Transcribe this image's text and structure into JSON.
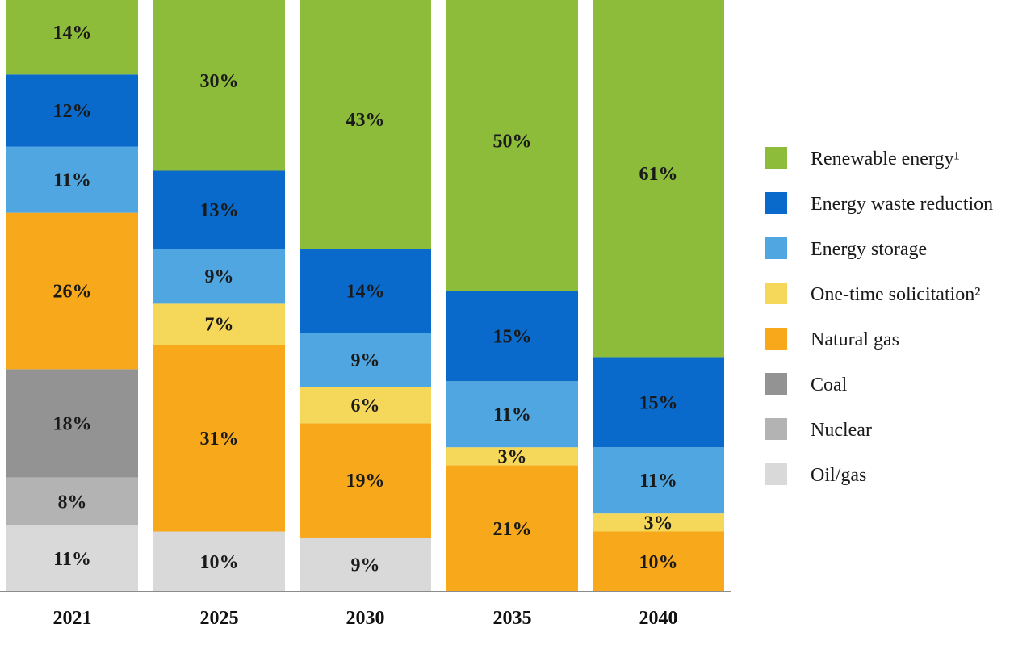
{
  "chart_data": {
    "type": "bar",
    "stacked": true,
    "percent_stacked": true,
    "title": "",
    "xlabel": "",
    "ylabel": "",
    "categories": [
      "2021",
      "2025",
      "2030",
      "2035",
      "2040"
    ],
    "series": [
      {
        "name": "Oil/gas",
        "color": "#d9d9d9",
        "values": [
          11,
          10,
          9,
          0,
          0
        ]
      },
      {
        "name": "Nuclear",
        "color": "#b3b3b3",
        "values": [
          8,
          0,
          0,
          0,
          0
        ]
      },
      {
        "name": "Coal",
        "color": "#939393",
        "values": [
          18,
          0,
          0,
          0,
          0
        ]
      },
      {
        "name": "Natural gas",
        "color": "#f7a81b",
        "values": [
          26,
          31,
          19,
          21,
          10
        ]
      },
      {
        "name": "One-time solicitation²",
        "color": "#f5d85a",
        "values": [
          0,
          7,
          6,
          3,
          3
        ]
      },
      {
        "name": "Energy storage",
        "color": "#50a6e0",
        "values": [
          11,
          9,
          9,
          11,
          11
        ]
      },
      {
        "name": "Energy waste reduction",
        "color": "#0a6acb",
        "values": [
          12,
          13,
          14,
          15,
          15
        ]
      },
      {
        "name": "Renewable energy¹",
        "color": "#8dbb3a",
        "values": [
          14,
          30,
          43,
          50,
          61
        ]
      }
    ],
    "legend_order": [
      "Renewable energy¹",
      "Energy waste reduction",
      "Energy storage",
      "One-time solicitation²",
      "Natural gas",
      "Coal",
      "Nuclear",
      "Oil/gas"
    ],
    "value_suffix": "%",
    "legend_position": "right",
    "grid": false
  }
}
